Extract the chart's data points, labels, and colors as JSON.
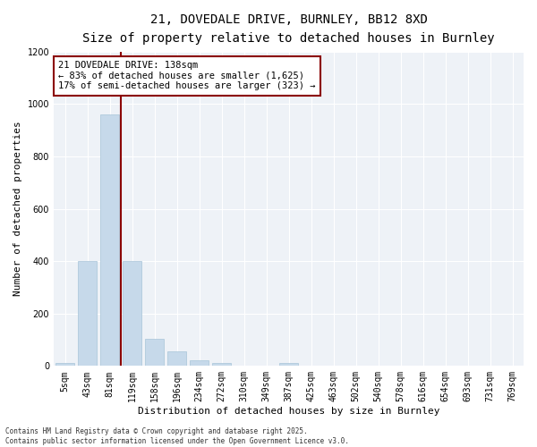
{
  "title_line1": "21, DOVEDALE DRIVE, BURNLEY, BB12 8XD",
  "title_line2": "Size of property relative to detached houses in Burnley",
  "xlabel": "Distribution of detached houses by size in Burnley",
  "ylabel": "Number of detached properties",
  "bar_color": "#c6d9ea",
  "bar_edge_color": "#a8c4d8",
  "categories": [
    "5sqm",
    "43sqm",
    "81sqm",
    "119sqm",
    "158sqm",
    "196sqm",
    "234sqm",
    "272sqm",
    "310sqm",
    "349sqm",
    "387sqm",
    "425sqm",
    "463sqm",
    "502sqm",
    "540sqm",
    "578sqm",
    "616sqm",
    "654sqm",
    "693sqm",
    "731sqm",
    "769sqm"
  ],
  "values": [
    12,
    400,
    960,
    400,
    105,
    55,
    20,
    12,
    0,
    0,
    12,
    0,
    0,
    0,
    0,
    0,
    0,
    0,
    0,
    0,
    0
  ],
  "ylim": [
    0,
    1200
  ],
  "yticks": [
    0,
    200,
    400,
    600,
    800,
    1000,
    1200
  ],
  "annotation_title": "21 DOVEDALE DRIVE: 138sqm",
  "annotation_line2": "← 83% of detached houses are smaller (1,625)",
  "annotation_line3": "17% of semi-detached houses are larger (323) →",
  "vline_color": "#8b0000",
  "annotation_box_color": "#8b0000",
  "background_color": "#eef2f7",
  "footer_line1": "Contains HM Land Registry data © Crown copyright and database right 2025.",
  "footer_line2": "Contains public sector information licensed under the Open Government Licence v3.0.",
  "grid_color": "#ffffff",
  "title_fontsize": 10,
  "subtitle_fontsize": 9,
  "tick_fontsize": 7,
  "ylabel_fontsize": 8,
  "xlabel_fontsize": 8,
  "annotation_fontsize": 7.5,
  "footer_fontsize": 5.5
}
